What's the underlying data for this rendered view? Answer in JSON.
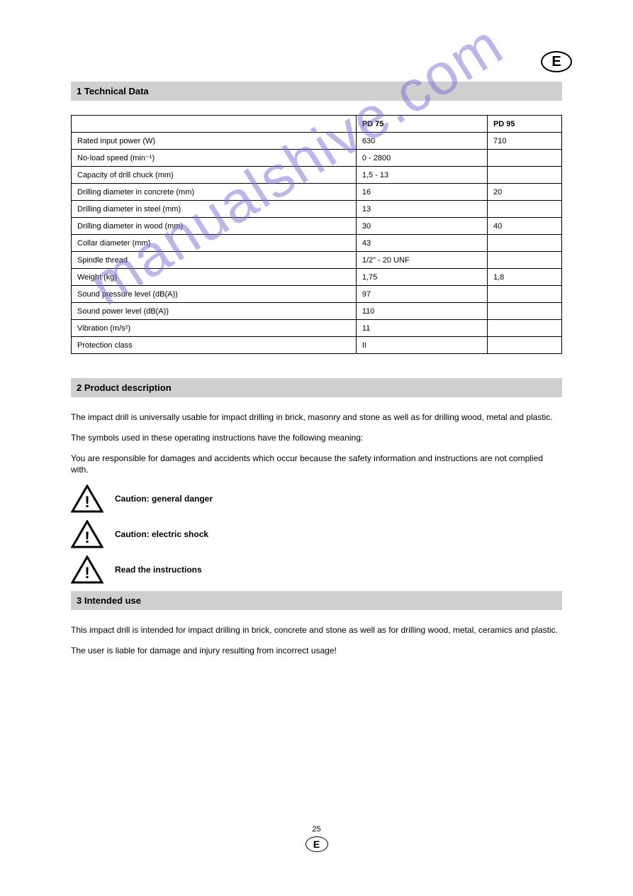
{
  "lang_badge": "E",
  "section1": {
    "title": "1 Technical Data",
    "col_headers": [
      "",
      "PD 75",
      "PD 95"
    ],
    "rows": [
      [
        "Rated input power (W)",
        "630",
        "710"
      ],
      [
        "No-load speed (min⁻¹)",
        "0 - 2800",
        ""
      ],
      [
        "Capacity of drill chuck (mm)",
        "1,5 - 13",
        ""
      ],
      [
        "Drilling diameter in concrete (mm)",
        "16",
        "20"
      ],
      [
        "Drilling diameter in steel (mm)",
        "13",
        ""
      ],
      [
        "Drilling diameter in wood (mm)",
        "30",
        "40"
      ],
      [
        "Collar diameter (mm)",
        "43",
        ""
      ],
      [
        "Spindle thread",
        "1/2\" - 20 UNF",
        ""
      ],
      [
        "Weight (kg)",
        "1,75",
        "1,8"
      ],
      [
        "Sound pressure level (dB(A))",
        "97",
        ""
      ],
      [
        "Sound power level (dB(A))",
        "110",
        ""
      ],
      [
        "Vibration (m/s²)",
        "11",
        ""
      ],
      [
        "Protection class",
        "II",
        ""
      ]
    ]
  },
  "section2": {
    "title": "2 Product description",
    "para1": "The impact drill is universally usable for impact drilling in brick, masonry and stone as well as for drilling wood, metal and plastic.",
    "para2": "The symbols used in these operating instructions have the following meaning:",
    "para3": "You are responsible for damages and accidents which occur because the safety information and instructions are not complied with."
  },
  "warnings": [
    "Caution: general danger",
    "Caution: electric shock",
    "Read the instructions"
  ],
  "section3": {
    "title": "3 Intended use",
    "para1": "This impact drill is intended for impact drilling in brick, concrete and stone as well as for drilling wood, metal, ceramics and plastic.",
    "para2": "The user is liable for damage and injury resulting from incorrect usage!"
  },
  "footer_page": "25",
  "footer_lang": "E"
}
